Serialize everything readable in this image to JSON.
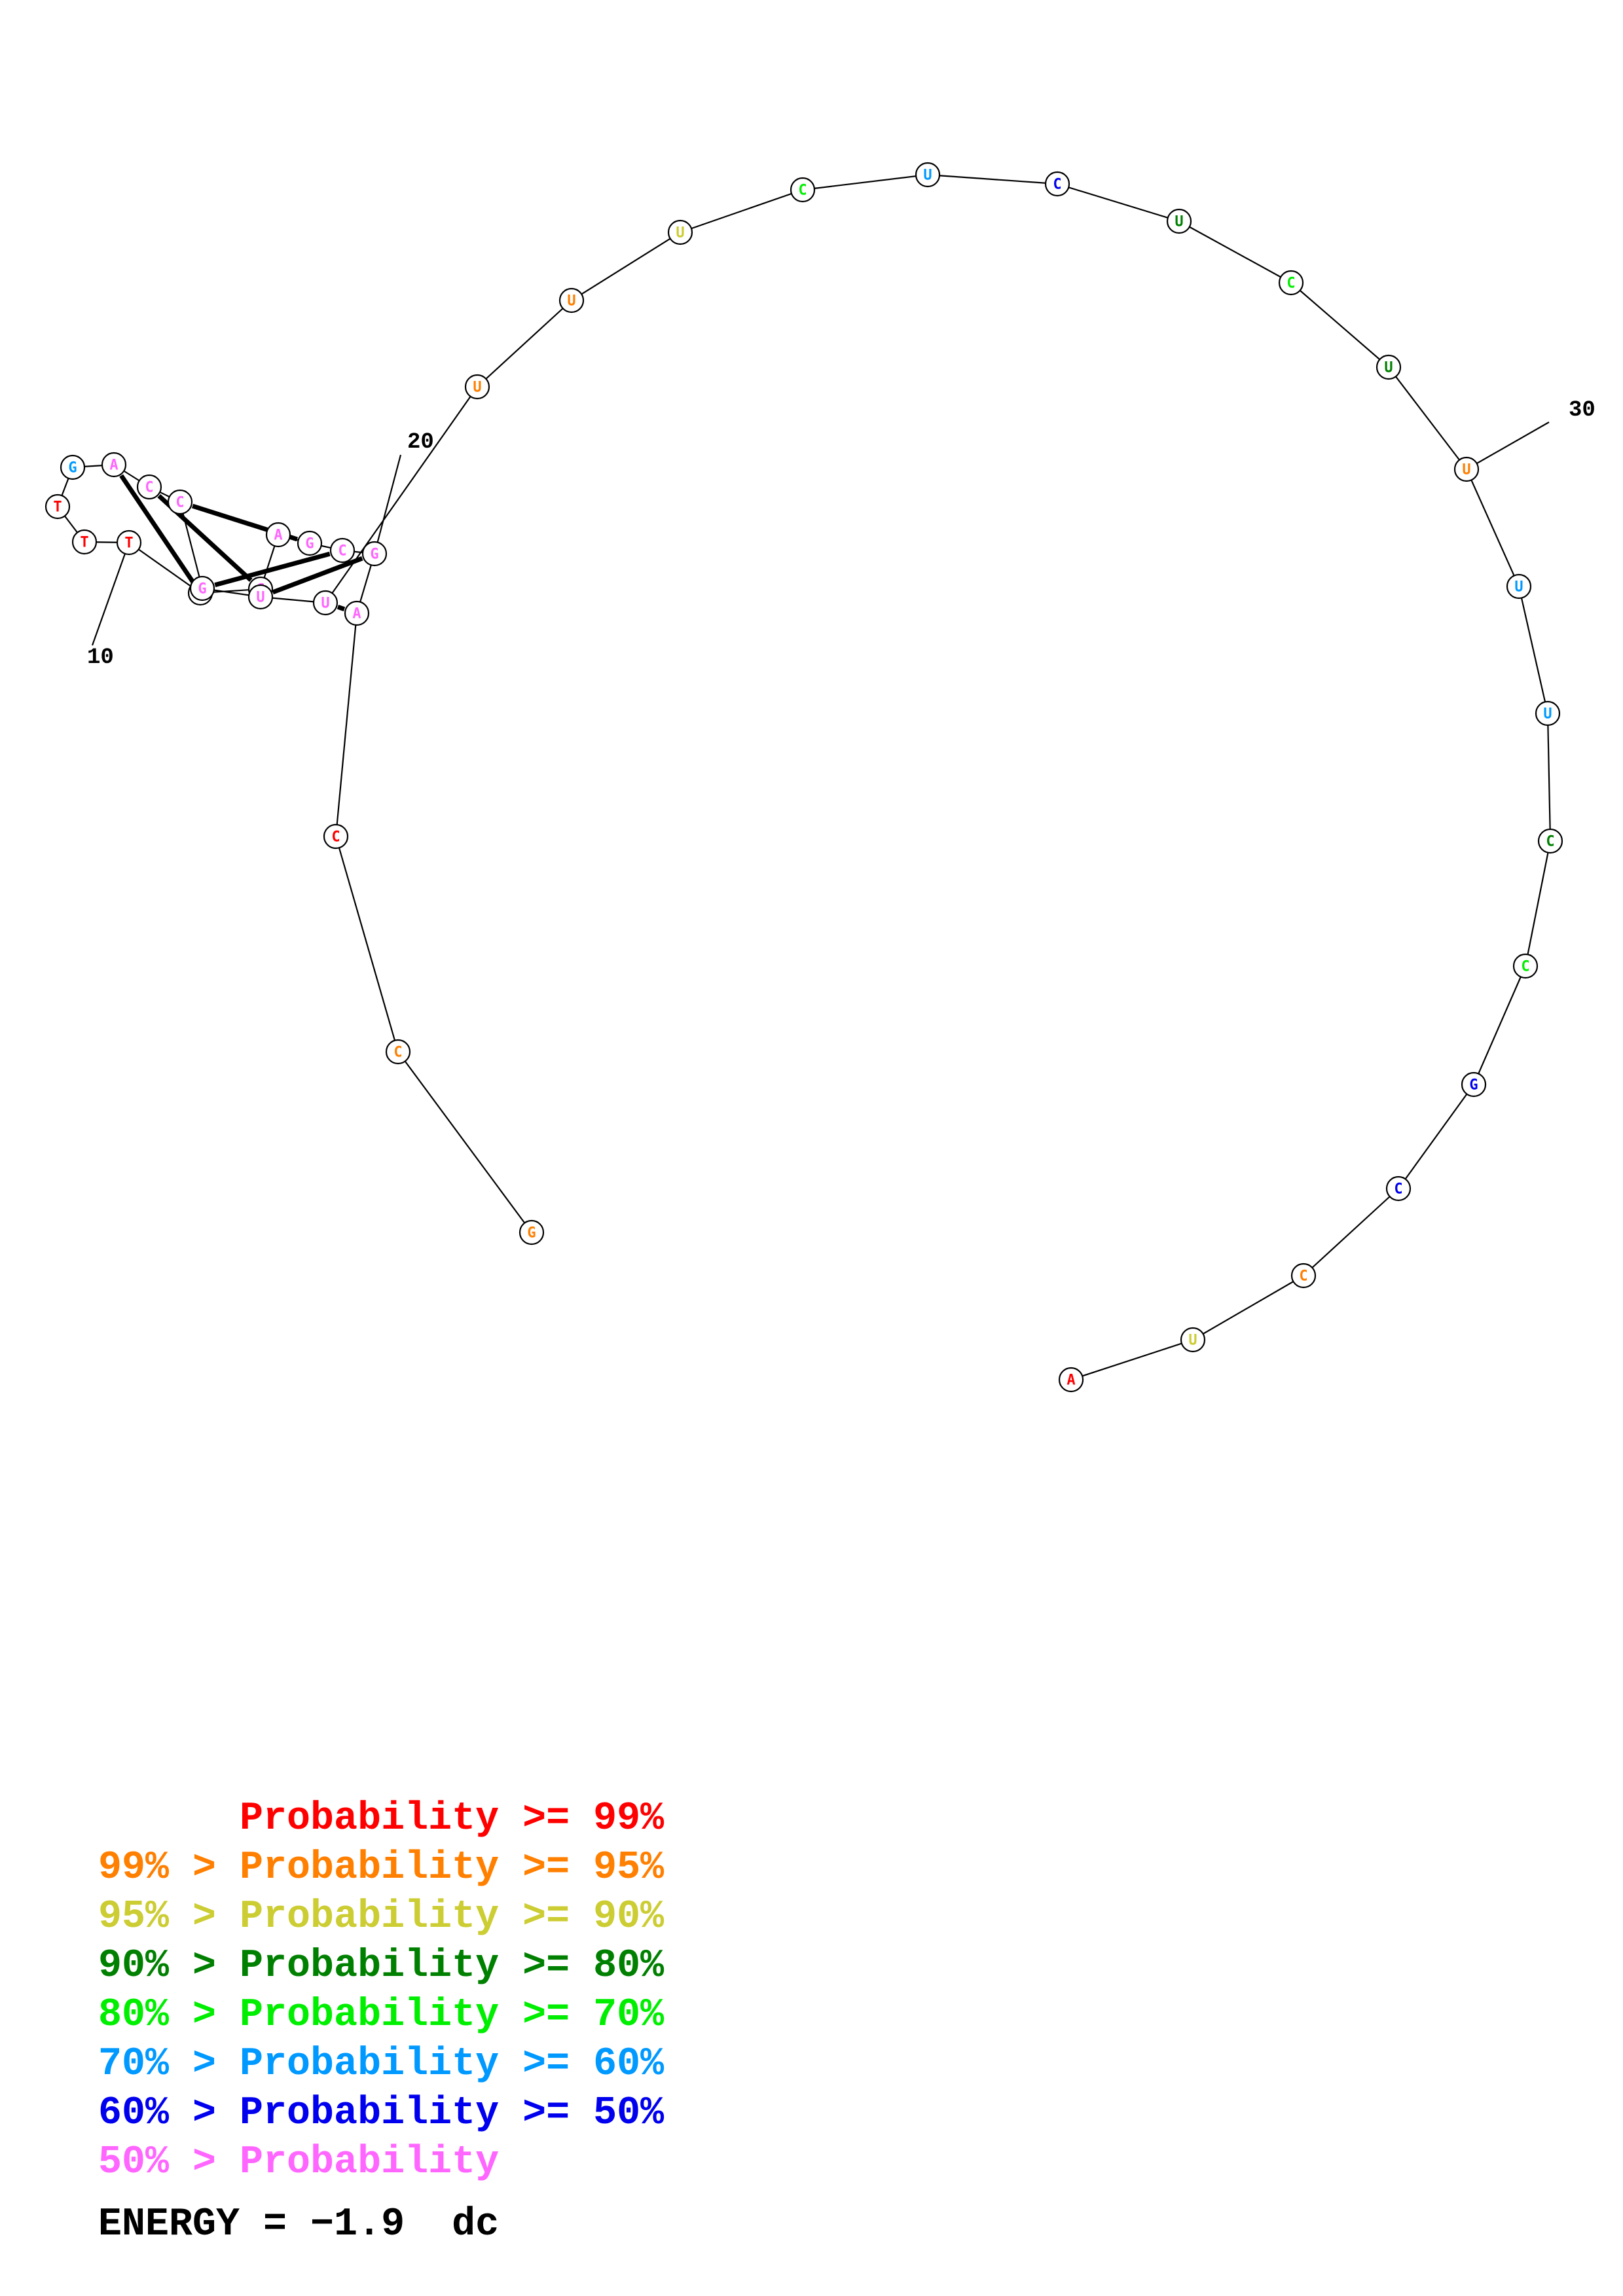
{
  "colors": {
    "p99": "#ff0000",
    "p95": "#ff7f00",
    "p90": "#cccc33",
    "p80": "#008000",
    "p70": "#00ee00",
    "p60": "#0099ff",
    "p50": "#0000ee",
    "low": "#ff66ff"
  },
  "nucleotides": [
    {
      "index": 1,
      "base": "G",
      "prob": "p95"
    },
    {
      "index": 2,
      "base": "C",
      "prob": "p95"
    },
    {
      "index": 3,
      "base": "C",
      "prob": "p99"
    },
    {
      "index": 4,
      "base": "A",
      "prob": "low"
    },
    {
      "index": 5,
      "base": "G",
      "prob": "low"
    },
    {
      "index": 6,
      "base": "C",
      "prob": "low"
    },
    {
      "index": 7,
      "base": "G",
      "prob": "low"
    },
    {
      "index": 8,
      "base": "A",
      "prob": "low"
    },
    {
      "index": 9,
      "base": "G",
      "prob": "low"
    },
    {
      "index": 10,
      "base": "T",
      "prob": "low"
    },
    {
      "index": 11,
      "base": "T",
      "prob": "p99"
    },
    {
      "index": 12,
      "base": "T",
      "prob": "p99"
    },
    {
      "index": 13,
      "base": "T",
      "prob": "p99"
    },
    {
      "index": 14,
      "base": "G",
      "prob": "p60"
    },
    {
      "index": 15,
      "base": "A",
      "prob": "low"
    },
    {
      "index": 16,
      "base": "C",
      "prob": "low"
    },
    {
      "index": 17,
      "base": "C",
      "prob": "low"
    },
    {
      "index": 18,
      "base": "G",
      "prob": "low"
    },
    {
      "index": 19,
      "base": "U",
      "prob": "low"
    },
    {
      "index": 20,
      "base": "U",
      "prob": "low"
    },
    {
      "index": 21,
      "base": "U",
      "prob": "p95"
    },
    {
      "index": 22,
      "base": "U",
      "prob": "p95"
    },
    {
      "index": 23,
      "base": "U",
      "prob": "p90"
    },
    {
      "index": 24,
      "base": "C",
      "prob": "p70"
    },
    {
      "index": 25,
      "base": "U",
      "prob": "p60"
    },
    {
      "index": 26,
      "base": "C",
      "prob": "p50"
    },
    {
      "index": 27,
      "base": "U",
      "prob": "p80"
    },
    {
      "index": 28,
      "base": "C",
      "prob": "p70"
    },
    {
      "index": 29,
      "base": "U",
      "prob": "p80"
    },
    {
      "index": 30,
      "base": "U",
      "prob": "p95"
    },
    {
      "index": 31,
      "base": "U",
      "prob": "p60"
    },
    {
      "index": 32,
      "base": "U",
      "prob": "p60"
    },
    {
      "index": 33,
      "base": "C",
      "prob": "p80"
    },
    {
      "index": 34,
      "base": "C",
      "prob": "p70"
    },
    {
      "index": 35,
      "base": "G",
      "prob": "p50"
    },
    {
      "index": 36,
      "base": "C",
      "prob": "p50"
    },
    {
      "index": 37,
      "base": "C",
      "prob": "p95"
    },
    {
      "index": 38,
      "base": "U",
      "prob": "p90"
    },
    {
      "index": 39,
      "base": "A",
      "prob": "p99"
    }
  ],
  "pairs": [
    [
      4,
      20
    ],
    [
      5,
      19
    ],
    [
      6,
      18
    ],
    [
      7,
      17
    ],
    [
      9,
      16
    ],
    [
      10,
      15
    ]
  ],
  "index_labels": [
    {
      "index": 10,
      "text": "10"
    },
    {
      "index": 20,
      "text": "20"
    },
    {
      "index": 30,
      "text": "30"
    }
  ],
  "legend": {
    "lines": [
      {
        "text": "      Probability >= 99%",
        "color": "p99"
      },
      {
        "text": "99% > Probability >= 95%",
        "color": "p95"
      },
      {
        "text": "95% > Probability >= 90%",
        "color": "p90"
      },
      {
        "text": "90% > Probability >= 80%",
        "color": "p80"
      },
      {
        "text": "80% > Probability >= 70%",
        "color": "p70"
      },
      {
        "text": "70% > Probability >= 60%",
        "color": "p60"
      },
      {
        "text": "60% > Probability >= 50%",
        "color": "p50"
      },
      {
        "text": "50% > Probability",
        "color": "low"
      }
    ],
    "energy": "ENERGY = −1.9  dc"
  }
}
